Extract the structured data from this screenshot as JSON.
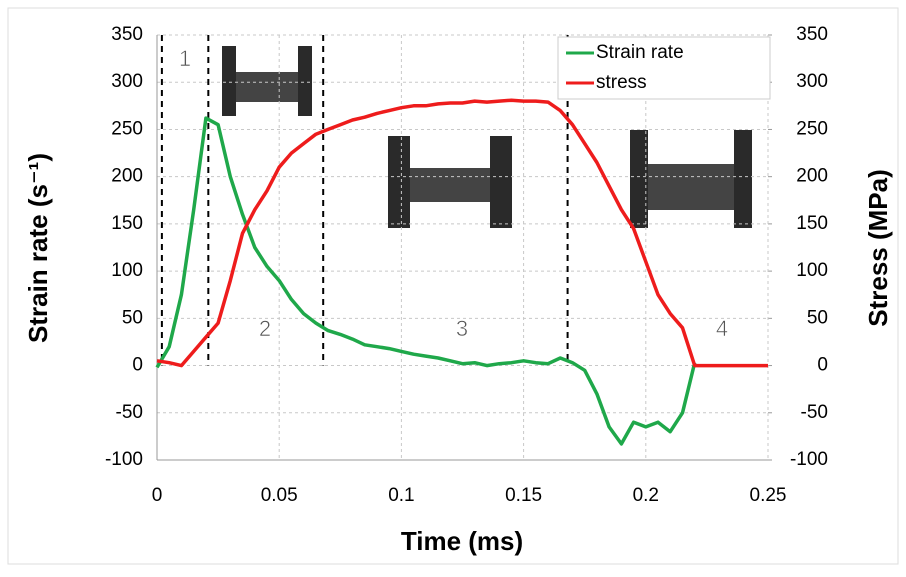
{
  "chart_data": {
    "type": "line",
    "xlabel": "Time (ms)",
    "ylabel": "Strain rate (s⁻¹)",
    "y2label": "Stress (MPa)",
    "annotations": [
      "1",
      "2",
      "3",
      "4"
    ],
    "vlines": [
      0.002,
      0.021,
      0.068,
      0.168
    ],
    "xlim": [
      0,
      0.25
    ],
    "xticks": [
      0,
      0.05,
      0.1,
      0.15,
      0.2,
      0.25
    ],
    "ylim": [
      -100,
      350
    ],
    "yticks": [
      -100,
      -50,
      0,
      50,
      100,
      150,
      200,
      250,
      300,
      350
    ],
    "y2lim": [
      -100,
      350
    ],
    "y2ticks": [
      -100,
      -50,
      0,
      50,
      100,
      150,
      200,
      250,
      300,
      350
    ],
    "grid": true,
    "legend": "upper right",
    "x": [
      0,
      0.005,
      0.01,
      0.015,
      0.02,
      0.025,
      0.03,
      0.035,
      0.04,
      0.045,
      0.05,
      0.055,
      0.06,
      0.065,
      0.07,
      0.075,
      0.08,
      0.085,
      0.09,
      0.095,
      0.1,
      0.105,
      0.11,
      0.115,
      0.12,
      0.125,
      0.13,
      0.135,
      0.14,
      0.145,
      0.15,
      0.155,
      0.16,
      0.165,
      0.17,
      0.175,
      0.18,
      0.185,
      0.19,
      0.195,
      0.2,
      0.205,
      0.21,
      0.215,
      0.22,
      0.225,
      0.23,
      0.235,
      0.24,
      0.245,
      0.25
    ],
    "series": [
      {
        "name": "Strain rate",
        "color": "#1fa84a",
        "axis": "y",
        "values": [
          -2,
          20,
          75,
          165,
          262,
          255,
          200,
          160,
          125,
          105,
          90,
          70,
          55,
          45,
          37,
          33,
          28,
          22,
          20,
          18,
          15,
          12,
          10,
          8,
          5,
          2,
          3,
          0,
          2,
          3,
          5,
          3,
          2,
          8,
          3,
          -5,
          -30,
          -65,
          -83,
          -60,
          -65,
          -60,
          -70,
          -50,
          3,
          null,
          null,
          null,
          null,
          null,
          null
        ]
      },
      {
        "name": "stress",
        "color": "#ee1c1c",
        "axis": "y2",
        "values": [
          5,
          3,
          0,
          15,
          30,
          45,
          90,
          140,
          165,
          185,
          210,
          225,
          235,
          245,
          250,
          255,
          260,
          263,
          267,
          270,
          273,
          275,
          275,
          277,
          278,
          278,
          280,
          279,
          280,
          281,
          280,
          280,
          279,
          270,
          255,
          235,
          215,
          190,
          165,
          145,
          110,
          75,
          55,
          40,
          0,
          0,
          0,
          0,
          0,
          0,
          0
        ]
      }
    ]
  }
}
